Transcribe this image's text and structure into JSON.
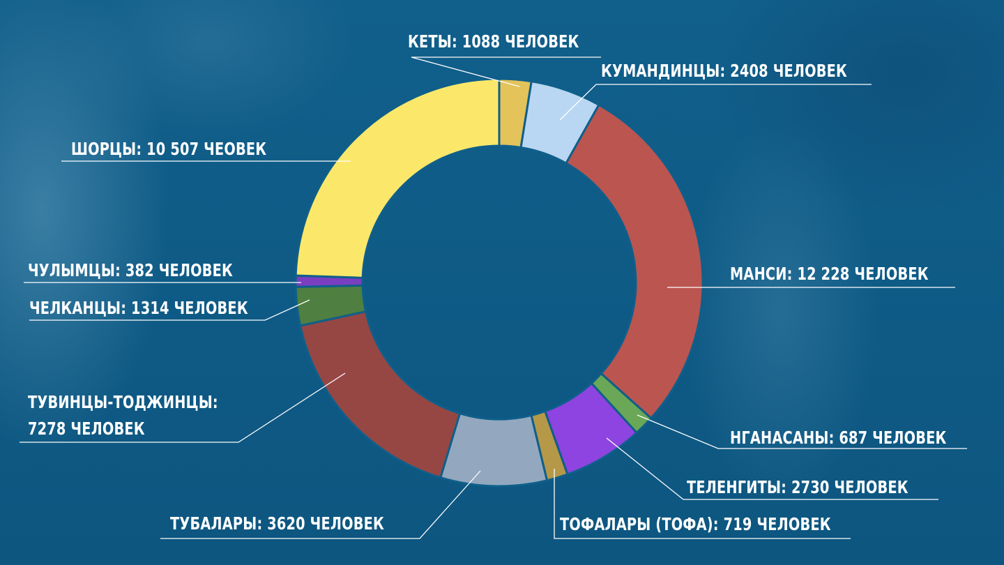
{
  "chart_data": {
    "type": "pie",
    "subtype": "donut",
    "title": "",
    "start_angle_deg": 0,
    "direction": "clockwise",
    "categories": [
      "Кеты",
      "Кумандинцы",
      "Манси",
      "Нганасаны",
      "Теленгиты",
      "Тофалары (тофа)",
      "Тубалары",
      "Тувинцы-тоджинцы",
      "Челканцы",
      "Чулымцы",
      "Шорцы"
    ],
    "values": [
      1088,
      2408,
      12228,
      687,
      2730,
      719,
      3620,
      7278,
      1314,
      382,
      10507
    ],
    "unit": "человек",
    "colors": [
      "#e3c35a",
      "#b9d7f2",
      "#bb5550",
      "#6aa757",
      "#8e44e0",
      "#b59848",
      "#93a8bf",
      "#964744",
      "#4f7f41",
      "#7a3fc0",
      "#fbe86a"
    ]
  },
  "labels": [
    {
      "text": "КЕТЫ: 1088 ЧЕЛОВЕК"
    },
    {
      "text": "КУМАНДИНЦЫ: 2408 ЧЕЛОВЕК"
    },
    {
      "text": "МАНСИ: 12 228 ЧЕЛОВЕК"
    },
    {
      "text": "НГАНАСАНЫ: 687 ЧЕЛОВЕК"
    },
    {
      "text": "ТЕЛЕНГИТЫ: 2730 ЧЕЛОВЕК"
    },
    {
      "text": "ТОФАЛАРЫ (ТОФА): 719 ЧЕЛОВЕК"
    },
    {
      "text": "ТУБАЛАРЫ: 3620 ЧЕЛОВЕК"
    },
    {
      "text_line1": "ТУВИНЦЫ-ТОДЖИНЦЫ:",
      "text_line2": "7278 ЧЕЛОВЕК"
    },
    {
      "text": "ЧЕЛКАНЦЫ: 1314 ЧЕЛОВЕК"
    },
    {
      "text": "ЧУЛЫМЦЫ: 382 ЧЕЛОВЕК"
    },
    {
      "text": "ШОРЦЫ: 10 507 ЧЕОВЕК"
    }
  ],
  "style": {
    "background": "#0f5f8a",
    "gap_color": "#0f5f8a",
    "leader_color": "#ffffff"
  }
}
